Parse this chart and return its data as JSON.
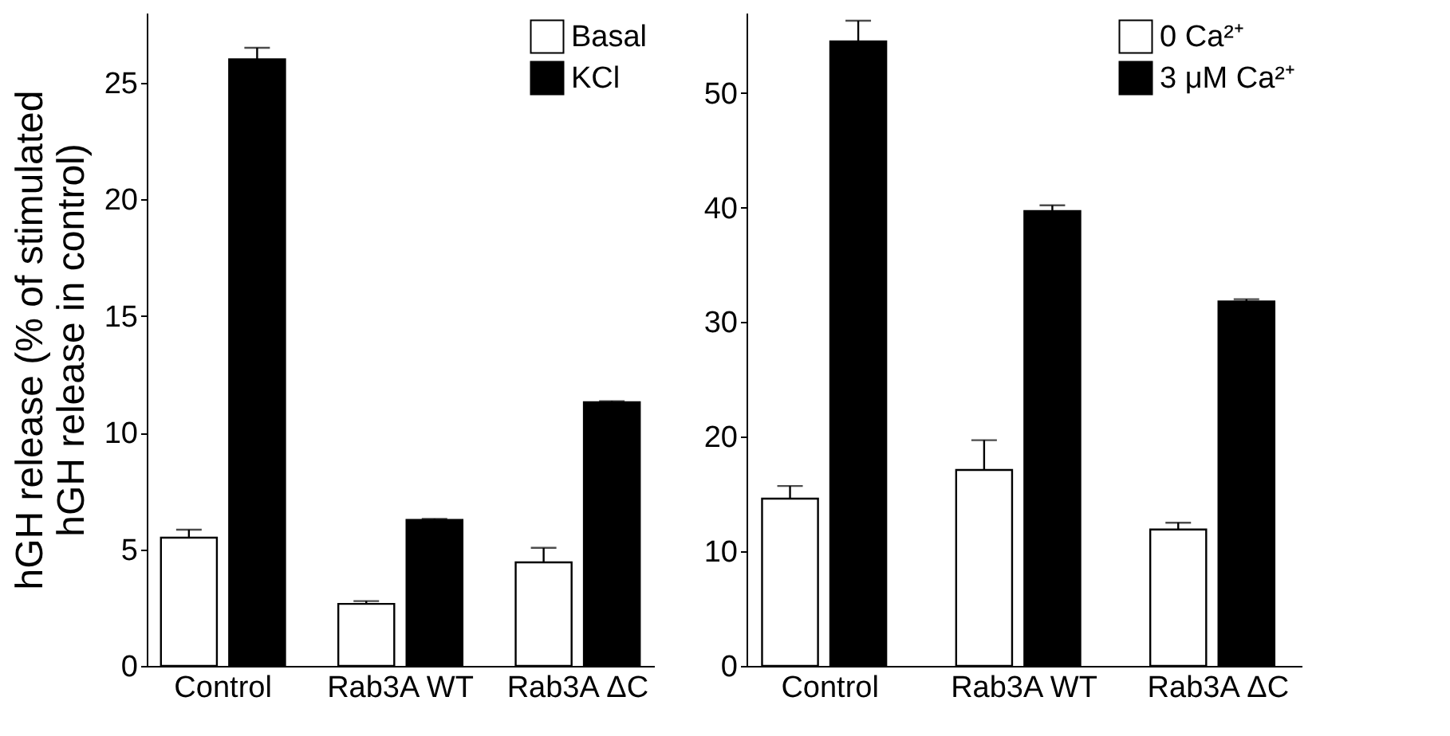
{
  "chart_data": [
    {
      "type": "bar",
      "ylabel": "hGH release (% of stimulated\nhGH release in control)",
      "categories": [
        "Control",
        "Rab3A WT",
        "Rab3A ΔC"
      ],
      "ylim": [
        0,
        28
      ],
      "yticks": [
        0,
        5,
        10,
        15,
        20,
        25
      ],
      "legend": "top right",
      "series": [
        {
          "name": "Basal",
          "color": "#ffffff",
          "values": [
            5.5,
            2.66,
            4.44
          ],
          "errors": [
            [
              5.5,
              5.84
            ],
            [
              2.66,
              2.78
            ],
            [
              4.44,
              5.06
            ]
          ]
        },
        {
          "name": "KCl",
          "color": "#000000",
          "values": [
            26.0,
            6.26,
            11.3
          ],
          "errors": [
            [
              26.0,
              26.5
            ],
            [
              6.26,
              6.3
            ],
            [
              11.3,
              11.35
            ]
          ]
        }
      ]
    },
    {
      "type": "bar",
      "categories": [
        "Control",
        "Rab3A WT",
        "Rab3A ΔC"
      ],
      "ylim": [
        0,
        57
      ],
      "yticks": [
        0,
        10,
        20,
        30,
        40,
        50
      ],
      "legend": "top right",
      "series": [
        {
          "name": "0 Ca²⁺",
          "color": "#ffffff",
          "values": [
            14.6,
            17.1,
            11.9
          ],
          "errors": [
            [
              14.6,
              15.7
            ],
            [
              17.1,
              19.7
            ],
            [
              11.9,
              12.5
            ]
          ]
        },
        {
          "name": "3 μM Ca²⁺",
          "color": "#000000",
          "values": [
            54.5,
            39.7,
            31.8
          ],
          "errors": [
            [
              54.5,
              56.3
            ],
            [
              39.7,
              40.2
            ],
            [
              31.8,
              32.0
            ]
          ]
        }
      ]
    }
  ]
}
